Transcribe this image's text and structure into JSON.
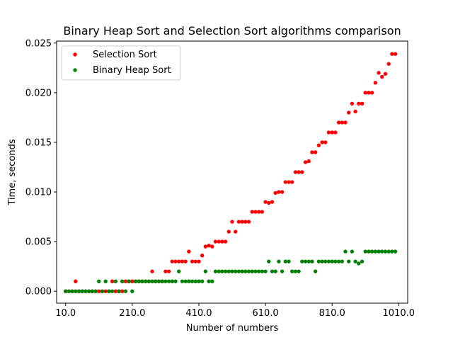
{
  "chart_data": {
    "type": "scatter",
    "title": "Binary Heap Sort and Selection Sort algorithms comparison",
    "xlabel": "Number of numbers",
    "ylabel": "Time, seconds",
    "xlim": [
      -17,
      1037
    ],
    "ylim": [
      -0.0012,
      0.0252
    ],
    "xticks": [
      10,
      210,
      410,
      610,
      810,
      1010
    ],
    "xtick_labels": [
      "10.0",
      "210.0",
      "410.0",
      "610.0",
      "810.0",
      "1010.0"
    ],
    "yticks": [
      0,
      0.005,
      0.01,
      0.015,
      0.02,
      0.025
    ],
    "ytick_labels": [
      "0.000",
      "0.005",
      "0.010",
      "0.015",
      "0.020",
      "0.025"
    ],
    "grid": false,
    "legend_position": "top-left",
    "series": [
      {
        "name": "Selection Sort",
        "color": "#ff0000",
        "points": [
          [
            10,
            0
          ],
          [
            20,
            0
          ],
          [
            30,
            0
          ],
          [
            40,
            0.001
          ],
          [
            50,
            0
          ],
          [
            60,
            0
          ],
          [
            70,
            0
          ],
          [
            80,
            0
          ],
          [
            90,
            0
          ],
          [
            100,
            0
          ],
          [
            110,
            0
          ],
          [
            120,
            0
          ],
          [
            130,
            0
          ],
          [
            140,
            0
          ],
          [
            150,
            0.001
          ],
          [
            160,
            0
          ],
          [
            170,
            0
          ],
          [
            180,
            0
          ],
          [
            190,
            0.001
          ],
          [
            200,
            0.001
          ],
          [
            210,
            0.001
          ],
          [
            220,
            0.001
          ],
          [
            230,
            0.001
          ],
          [
            240,
            0.001
          ],
          [
            250,
            0.001
          ],
          [
            260,
            0.001
          ],
          [
            270,
            0.002
          ],
          [
            280,
            0.001
          ],
          [
            290,
            0.001
          ],
          [
            300,
            0.001
          ],
          [
            310,
            0.002
          ],
          [
            320,
            0.002
          ],
          [
            330,
            0.003
          ],
          [
            340,
            0.003
          ],
          [
            350,
            0.003
          ],
          [
            360,
            0.003
          ],
          [
            370,
            0.003
          ],
          [
            380,
            0.004
          ],
          [
            390,
            0.003
          ],
          [
            400,
            0.003
          ],
          [
            410,
            0.003
          ],
          [
            420,
            0.0036
          ],
          [
            430,
            0.0045
          ],
          [
            440,
            0.0046
          ],
          [
            450,
            0.0045
          ],
          [
            460,
            0.005
          ],
          [
            470,
            0.005
          ],
          [
            480,
            0.005
          ],
          [
            490,
            0.005
          ],
          [
            500,
            0.006
          ],
          [
            510,
            0.007
          ],
          [
            520,
            0.006
          ],
          [
            530,
            0.007
          ],
          [
            540,
            0.007
          ],
          [
            550,
            0.007
          ],
          [
            560,
            0.007
          ],
          [
            570,
            0.008
          ],
          [
            580,
            0.008
          ],
          [
            590,
            0.008
          ],
          [
            600,
            0.008
          ],
          [
            610,
            0.009
          ],
          [
            620,
            0.0089
          ],
          [
            630,
            0.009
          ],
          [
            640,
            0.0099
          ],
          [
            650,
            0.01
          ],
          [
            660,
            0.01
          ],
          [
            670,
            0.011
          ],
          [
            680,
            0.011
          ],
          [
            690,
            0.011
          ],
          [
            700,
            0.012
          ],
          [
            710,
            0.012
          ],
          [
            720,
            0.012
          ],
          [
            730,
            0.013
          ],
          [
            740,
            0.0131
          ],
          [
            750,
            0.014
          ],
          [
            760,
            0.014
          ],
          [
            770,
            0.0147
          ],
          [
            780,
            0.015
          ],
          [
            790,
            0.015
          ],
          [
            800,
            0.016
          ],
          [
            810,
            0.016
          ],
          [
            820,
            0.016
          ],
          [
            830,
            0.017
          ],
          [
            840,
            0.017
          ],
          [
            850,
            0.017
          ],
          [
            860,
            0.018
          ],
          [
            870,
            0.0189
          ],
          [
            880,
            0.0181
          ],
          [
            890,
            0.0189
          ],
          [
            900,
            0.0189
          ],
          [
            910,
            0.02
          ],
          [
            920,
            0.02
          ],
          [
            930,
            0.02
          ],
          [
            940,
            0.021
          ],
          [
            950,
            0.022
          ],
          [
            960,
            0.0216
          ],
          [
            970,
            0.0219
          ],
          [
            980,
            0.0229
          ],
          [
            990,
            0.0239
          ],
          [
            1000,
            0.0239
          ]
        ]
      },
      {
        "name": "Binary Heap Sort",
        "color": "#008000",
        "points": [
          [
            10,
            0
          ],
          [
            20,
            0
          ],
          [
            30,
            0
          ],
          [
            40,
            0
          ],
          [
            50,
            0
          ],
          [
            60,
            0
          ],
          [
            70,
            0
          ],
          [
            80,
            0
          ],
          [
            90,
            0
          ],
          [
            100,
            0
          ],
          [
            110,
            0.001
          ],
          [
            120,
            0
          ],
          [
            130,
            0.001
          ],
          [
            140,
            0
          ],
          [
            150,
            0
          ],
          [
            160,
            0.001
          ],
          [
            170,
            0
          ],
          [
            180,
            0.001
          ],
          [
            190,
            0
          ],
          [
            200,
            0.001
          ],
          [
            210,
            0
          ],
          [
            220,
            0.001
          ],
          [
            230,
            0.001
          ],
          [
            240,
            0.001
          ],
          [
            250,
            0.001
          ],
          [
            260,
            0.001
          ],
          [
            270,
            0.001
          ],
          [
            280,
            0.001
          ],
          [
            290,
            0.001
          ],
          [
            300,
            0.001
          ],
          [
            310,
            0.001
          ],
          [
            320,
            0.001
          ],
          [
            330,
            0.001
          ],
          [
            340,
            0.001
          ],
          [
            350,
            0.002
          ],
          [
            360,
            0.001
          ],
          [
            370,
            0.001
          ],
          [
            380,
            0.001
          ],
          [
            390,
            0.001
          ],
          [
            400,
            0.001
          ],
          [
            410,
            0.001
          ],
          [
            420,
            0.001
          ],
          [
            430,
            0.002
          ],
          [
            440,
            0.001
          ],
          [
            450,
            0.001
          ],
          [
            460,
            0.002
          ],
          [
            470,
            0.002
          ],
          [
            480,
            0.002
          ],
          [
            490,
            0.002
          ],
          [
            500,
            0.002
          ],
          [
            510,
            0.002
          ],
          [
            520,
            0.002
          ],
          [
            530,
            0.002
          ],
          [
            540,
            0.002
          ],
          [
            550,
            0.002
          ],
          [
            560,
            0.002
          ],
          [
            570,
            0.002
          ],
          [
            580,
            0.002
          ],
          [
            590,
            0.002
          ],
          [
            600,
            0.002
          ],
          [
            610,
            0.002
          ],
          [
            620,
            0.003
          ],
          [
            630,
            0.002
          ],
          [
            640,
            0.002
          ],
          [
            650,
            0.003
          ],
          [
            660,
            0.002
          ],
          [
            670,
            0.003
          ],
          [
            680,
            0.003
          ],
          [
            690,
            0.002
          ],
          [
            700,
            0.002
          ],
          [
            710,
            0.002
          ],
          [
            720,
            0.003
          ],
          [
            730,
            0.003
          ],
          [
            740,
            0.003
          ],
          [
            750,
            0.003
          ],
          [
            760,
            0.002
          ],
          [
            770,
            0.003
          ],
          [
            780,
            0.003
          ],
          [
            790,
            0.003
          ],
          [
            800,
            0.003
          ],
          [
            810,
            0.003
          ],
          [
            820,
            0.003
          ],
          [
            830,
            0.003
          ],
          [
            840,
            0.003
          ],
          [
            850,
            0.004
          ],
          [
            860,
            0.003
          ],
          [
            870,
            0.004
          ],
          [
            880,
            0.003
          ],
          [
            890,
            0.0028
          ],
          [
            900,
            0.003
          ],
          [
            910,
            0.004
          ],
          [
            920,
            0.004
          ],
          [
            930,
            0.004
          ],
          [
            940,
            0.004
          ],
          [
            950,
            0.004
          ],
          [
            960,
            0.004
          ],
          [
            970,
            0.004
          ],
          [
            980,
            0.004
          ],
          [
            990,
            0.004
          ],
          [
            1000,
            0.004
          ]
        ]
      }
    ]
  }
}
